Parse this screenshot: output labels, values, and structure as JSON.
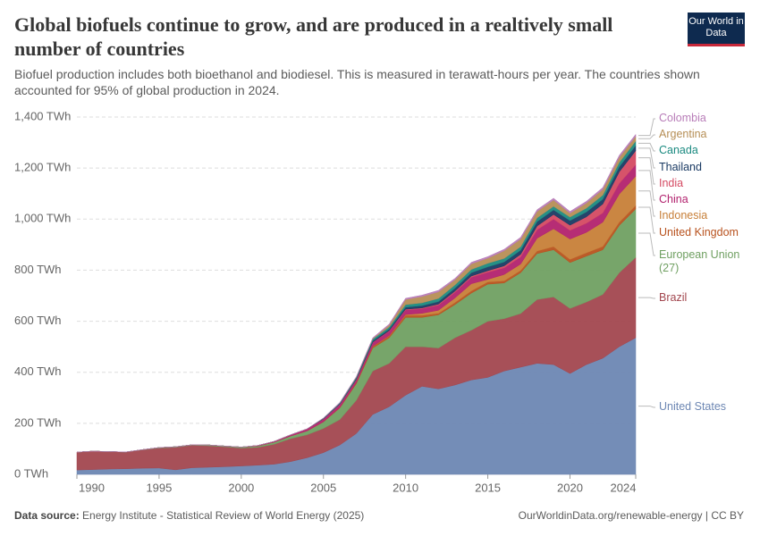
{
  "chart_data": {
    "type": "stacked-area",
    "title": "Global biofuels continue to grow, and are produced in a realtively small number of countries",
    "subtitle": "Biofuel production includes both bioethanol and biodiesel. This is measured in terawatt-hours per year. The countries shown accounted for 95% of global production in 2024.",
    "logo": "Our World in Data",
    "source_label": "Data source:",
    "source": "Energy Institute - Statistical Review of World Energy (2025)",
    "credit": "OurWorldinData.org/renewable-energy | CC BY",
    "x": [
      1990,
      1991,
      1992,
      1993,
      1994,
      1995,
      1996,
      1997,
      1998,
      1999,
      2000,
      2001,
      2002,
      2003,
      2004,
      2005,
      2006,
      2007,
      2008,
      2009,
      2010,
      2011,
      2012,
      2013,
      2014,
      2015,
      2016,
      2017,
      2018,
      2019,
      2020,
      2021,
      2022,
      2023,
      2024
    ],
    "xlim": [
      1990,
      2024
    ],
    "xticks": [
      1990,
      1995,
      2000,
      2005,
      2010,
      2015,
      2020,
      2024
    ],
    "ylim": [
      0,
      1400
    ],
    "yticks": [
      {
        "value": 0,
        "label": "0 TWh"
      },
      {
        "value": 200,
        "label": "200 TWh"
      },
      {
        "value": 400,
        "label": "400 TWh"
      },
      {
        "value": 600,
        "label": "600 TWh"
      },
      {
        "value": 800,
        "label": "800 TWh"
      },
      {
        "value": 1000,
        "label": "1,000 TWh"
      },
      {
        "value": 1200,
        "label": "1,200 TWh"
      },
      {
        "value": 1400,
        "label": "1,400 TWh"
      }
    ],
    "grid": true,
    "series": [
      {
        "name": "United States",
        "color": "#6d87b3",
        "values": [
          17,
          19,
          21,
          22,
          24,
          25,
          18,
          26,
          28,
          30,
          33,
          36,
          40,
          50,
          65,
          85,
          115,
          160,
          235,
          265,
          310,
          345,
          335,
          350,
          370,
          380,
          405,
          420,
          435,
          430,
          395,
          430,
          455,
          500,
          535
        ]
      },
      {
        "name": "Brazil",
        "color": "#a2474f",
        "values": [
          70,
          72,
          68,
          66,
          72,
          78,
          88,
          88,
          84,
          78,
          70,
          70,
          78,
          90,
          90,
          95,
          100,
          130,
          170,
          170,
          190,
          155,
          160,
          185,
          195,
          220,
          205,
          210,
          250,
          265,
          255,
          245,
          250,
          290,
          315
        ]
      },
      {
        "name": "European Union (27)",
        "color": "#70a062",
        "values": [
          0,
          0,
          0,
          0,
          1,
          2,
          2,
          2,
          3,
          3,
          4,
          5,
          8,
          10,
          15,
          25,
          45,
          65,
          90,
          100,
          115,
          115,
          130,
          130,
          145,
          145,
          140,
          160,
          180,
          185,
          180,
          180,
          175,
          185,
          190
        ]
      },
      {
        "name": "United Kingdom",
        "color": "#b8521e",
        "values": [
          0,
          0,
          0,
          0,
          0,
          0,
          0,
          0,
          0,
          0,
          0,
          0,
          0,
          0,
          0,
          1,
          2,
          4,
          6,
          7,
          8,
          8,
          6,
          8,
          9,
          9,
          8,
          9,
          10,
          12,
          12,
          13,
          13,
          13,
          13
        ]
      },
      {
        "name": "Indonesia",
        "color": "#c77f38",
        "values": [
          0,
          0,
          0,
          0,
          0,
          0,
          0,
          0,
          0,
          0,
          0,
          0,
          0,
          0,
          0,
          0,
          0,
          0,
          1,
          2,
          3,
          8,
          12,
          18,
          28,
          10,
          25,
          25,
          50,
          70,
          80,
          80,
          95,
          110,
          115
        ]
      },
      {
        "name": "China",
        "color": "#b2226e",
        "values": [
          0,
          0,
          0,
          0,
          0,
          0,
          0,
          0,
          0,
          0,
          0,
          2,
          3,
          5,
          8,
          10,
          12,
          12,
          15,
          17,
          18,
          18,
          20,
          22,
          25,
          28,
          26,
          28,
          33,
          38,
          34,
          36,
          36,
          42,
          45
        ]
      },
      {
        "name": "India",
        "color": "#d44a62",
        "values": [
          0,
          0,
          0,
          0,
          0,
          0,
          0,
          0,
          0,
          0,
          0,
          0,
          0,
          0,
          0,
          1,
          1,
          1,
          1,
          2,
          3,
          3,
          4,
          5,
          5,
          6,
          8,
          10,
          15,
          18,
          20,
          25,
          35,
          45,
          55
        ]
      },
      {
        "name": "Thailand",
        "color": "#1a3a63",
        "values": [
          0,
          0,
          0,
          0,
          0,
          0,
          0,
          0,
          0,
          0,
          0,
          0,
          0,
          0,
          0,
          1,
          2,
          3,
          5,
          6,
          8,
          9,
          10,
          11,
          13,
          15,
          15,
          16,
          17,
          18,
          18,
          19,
          19,
          20,
          20
        ]
      },
      {
        "name": "Canada",
        "color": "#1b8a80",
        "values": [
          0,
          0,
          0,
          0,
          0,
          0,
          0,
          0,
          0,
          0,
          0,
          0,
          0,
          0,
          0,
          2,
          3,
          5,
          7,
          8,
          10,
          11,
          12,
          13,
          13,
          14,
          14,
          14,
          15,
          14,
          14,
          15,
          16,
          17,
          18
        ]
      },
      {
        "name": "Argentina",
        "color": "#b68e55",
        "values": [
          0,
          0,
          0,
          0,
          0,
          0,
          0,
          0,
          0,
          0,
          0,
          0,
          0,
          0,
          0,
          0,
          0,
          1,
          2,
          8,
          20,
          25,
          26,
          20,
          22,
          20,
          30,
          30,
          25,
          25,
          15,
          20,
          22,
          20,
          18
        ]
      },
      {
        "name": "Colombia",
        "color": "#b87db8",
        "values": [
          0,
          0,
          0,
          0,
          0,
          0,
          0,
          0,
          0,
          0,
          0,
          0,
          0,
          0,
          0,
          1,
          2,
          2,
          3,
          4,
          5,
          5,
          6,
          6,
          6,
          6,
          6,
          7,
          7,
          7,
          7,
          7,
          8,
          8,
          8
        ]
      }
    ]
  }
}
